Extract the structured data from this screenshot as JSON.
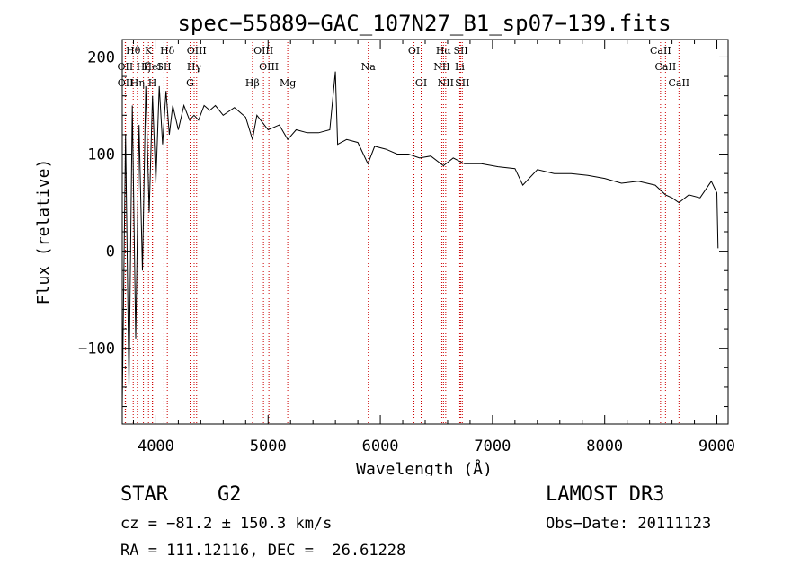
{
  "chart_data": {
    "type": "line",
    "title": "spec−55889−GAC_107N27_B1_sp07−139.fits",
    "xlabel": "Wavelength (Å)",
    "ylabel": "Flux (relative)",
    "xlim": [
      3700,
      9100
    ],
    "ylim": [
      -178,
      218
    ],
    "xticks": [
      4000,
      5000,
      6000,
      7000,
      8000,
      9000
    ],
    "xtick_labels": [
      "4000",
      "5000",
      "6000",
      "7000",
      "8000",
      "9000"
    ],
    "yticks": [
      -100,
      0,
      100,
      200
    ],
    "ytick_labels": [
      "−100",
      "0",
      "100",
      "200"
    ],
    "line_color": "#000000",
    "marker_color": "#cc0000",
    "spectrum": {
      "x": [
        3700,
        3730,
        3760,
        3790,
        3820,
        3850,
        3880,
        3910,
        3940,
        3970,
        4000,
        4030,
        4060,
        4090,
        4120,
        4150,
        4200,
        4250,
        4300,
        4340,
        4380,
        4430,
        4480,
        4530,
        4600,
        4700,
        4800,
        4861,
        4900,
        5000,
        5100,
        5175,
        5250,
        5350,
        5450,
        5550,
        5600,
        5620,
        5700,
        5800,
        5890,
        5950,
        6050,
        6150,
        6250,
        6350,
        6450,
        6563,
        6650,
        6750,
        6900,
        7050,
        7200,
        7270,
        7400,
        7550,
        7700,
        7850,
        8000,
        8150,
        8300,
        8450,
        8542,
        8600,
        8662,
        8750,
        8850,
        8950,
        9000,
        9010
      ],
      "y": [
        -160,
        120,
        -140,
        150,
        -90,
        130,
        -20,
        170,
        40,
        160,
        70,
        170,
        110,
        165,
        120,
        150,
        125,
        150,
        135,
        140,
        135,
        150,
        145,
        150,
        140,
        148,
        138,
        115,
        140,
        125,
        130,
        115,
        125,
        122,
        122,
        125,
        185,
        110,
        115,
        112,
        90,
        108,
        105,
        100,
        100,
        96,
        98,
        88,
        96,
        90,
        90,
        87,
        85,
        68,
        84,
        80,
        80,
        78,
        75,
        70,
        72,
        68,
        58,
        55,
        50,
        58,
        55,
        72,
        60,
        3
      ]
    },
    "lines_top": [
      {
        "label": "Hθ",
        "x": 3798
      },
      {
        "label": "K",
        "x": 3934
      },
      {
        "label": "Hδ",
        "x": 4102
      },
      {
        "label": "OIII",
        "x": 4363
      },
      {
        "label": "OIII",
        "x": 4959
      },
      {
        "label": "OI",
        "x": 6300
      },
      {
        "label": "Hα",
        "x": 6563
      },
      {
        "label": "SII",
        "x": 6717
      },
      {
        "label": "CaII",
        "x": 8498
      }
    ],
    "lines_mid": [
      {
        "label": "OII",
        "x": 3727
      },
      {
        "label": "Hζ",
        "x": 3889
      },
      {
        "label": "HeI",
        "x": 3970
      },
      {
        "label": "SII",
        "x": 4072
      },
      {
        "label": "Hγ",
        "x": 4341
      },
      {
        "label": "OIII",
        "x": 5007
      },
      {
        "label": "Na",
        "x": 5893
      },
      {
        "label": "NII",
        "x": 6548
      },
      {
        "label": "Li",
        "x": 6708
      },
      {
        "label": "CaII",
        "x": 8542
      }
    ],
    "lines_low": [
      {
        "label": "OII",
        "x": 3729
      },
      {
        "label": "Hη",
        "x": 3835
      },
      {
        "label": "H",
        "x": 3969
      },
      {
        "label": "G",
        "x": 4305
      },
      {
        "label": "Hβ",
        "x": 4861
      },
      {
        "label": "Mg",
        "x": 5175
      },
      {
        "label": "OI",
        "x": 6364
      },
      {
        "label": "NII",
        "x": 6583
      },
      {
        "label": "SII",
        "x": 6731
      },
      {
        "label": "CaII",
        "x": 8662
      }
    ]
  },
  "info": {
    "class_label": "STAR",
    "subclass": "G2",
    "survey": "LAMOST DR3",
    "cz": "cz = −81.2 ± 150.3 km/s",
    "obs_date": "Obs−Date: 20111123",
    "radec": "RA = 111.12116, DEC =  26.61228"
  }
}
